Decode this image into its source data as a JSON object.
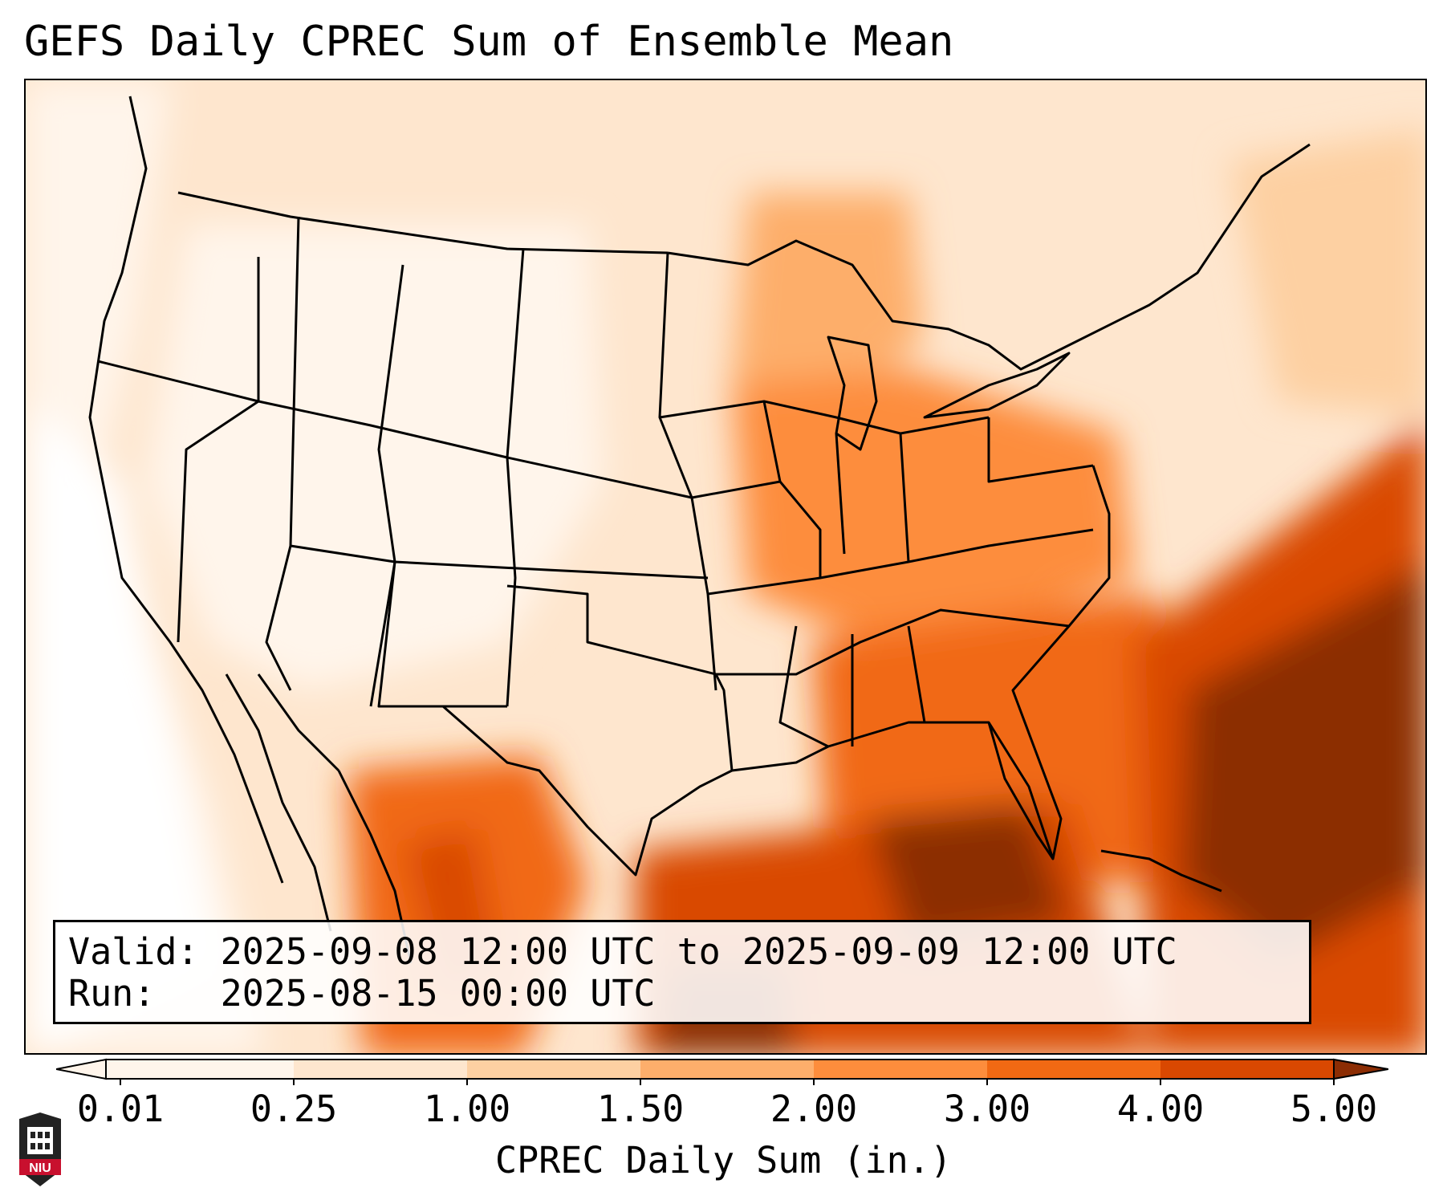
{
  "title": "GEFS Daily CPREC Sum of Ensemble Mean",
  "info": {
    "valid_label": "Valid:",
    "valid_value": "2025-09-08 12:00 UTC to 2025-09-09 12:00 UTC",
    "run_label": "Run:",
    "run_value": "2025-08-15 00:00 UTC"
  },
  "colorbar": {
    "label": "CPREC Daily Sum (in.)",
    "ticks": [
      "0.01",
      "0.25",
      "1.00",
      "1.50",
      "2.00",
      "3.00",
      "4.00",
      "5.00"
    ],
    "colors": [
      "#fff5eb",
      "#fee6ce",
      "#fdd0a2",
      "#fdae6b",
      "#fd8d3c",
      "#f16913",
      "#d94801",
      "#8c2d04"
    ]
  },
  "logo": {
    "text": "NIU",
    "name": "niu-logo"
  }
}
